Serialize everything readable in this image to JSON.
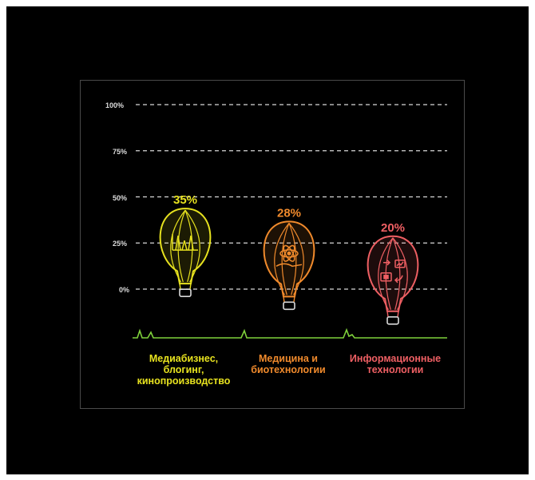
{
  "chart_data": {
    "type": "bar",
    "categories": [
      "Медиабизнес, блогинг, кинопроизводство",
      "Медицина и биотехнологии",
      "Информационные технологии"
    ],
    "category_lines": [
      [
        "Медиабизнес,",
        "блогинг,",
        "кинопроизводство"
      ],
      [
        "Медицина и",
        "биотехнологии"
      ],
      [
        "Информационные",
        "технологии"
      ]
    ],
    "values": [
      35,
      28,
      20
    ],
    "value_labels": [
      "35%",
      "28%",
      "20%"
    ],
    "ylim": [
      0,
      100
    ],
    "y_ticks": [
      "0%",
      "25%",
      "50%",
      "75%",
      "100%"
    ],
    "grid": true,
    "colors": [
      "#e7e21f",
      "#f08a2c",
      "#ee5f63"
    ],
    "icons": [
      "bar-chart-icon",
      "atom-icon",
      "workflow-icon"
    ],
    "baseline_color": "#7fd13b"
  }
}
